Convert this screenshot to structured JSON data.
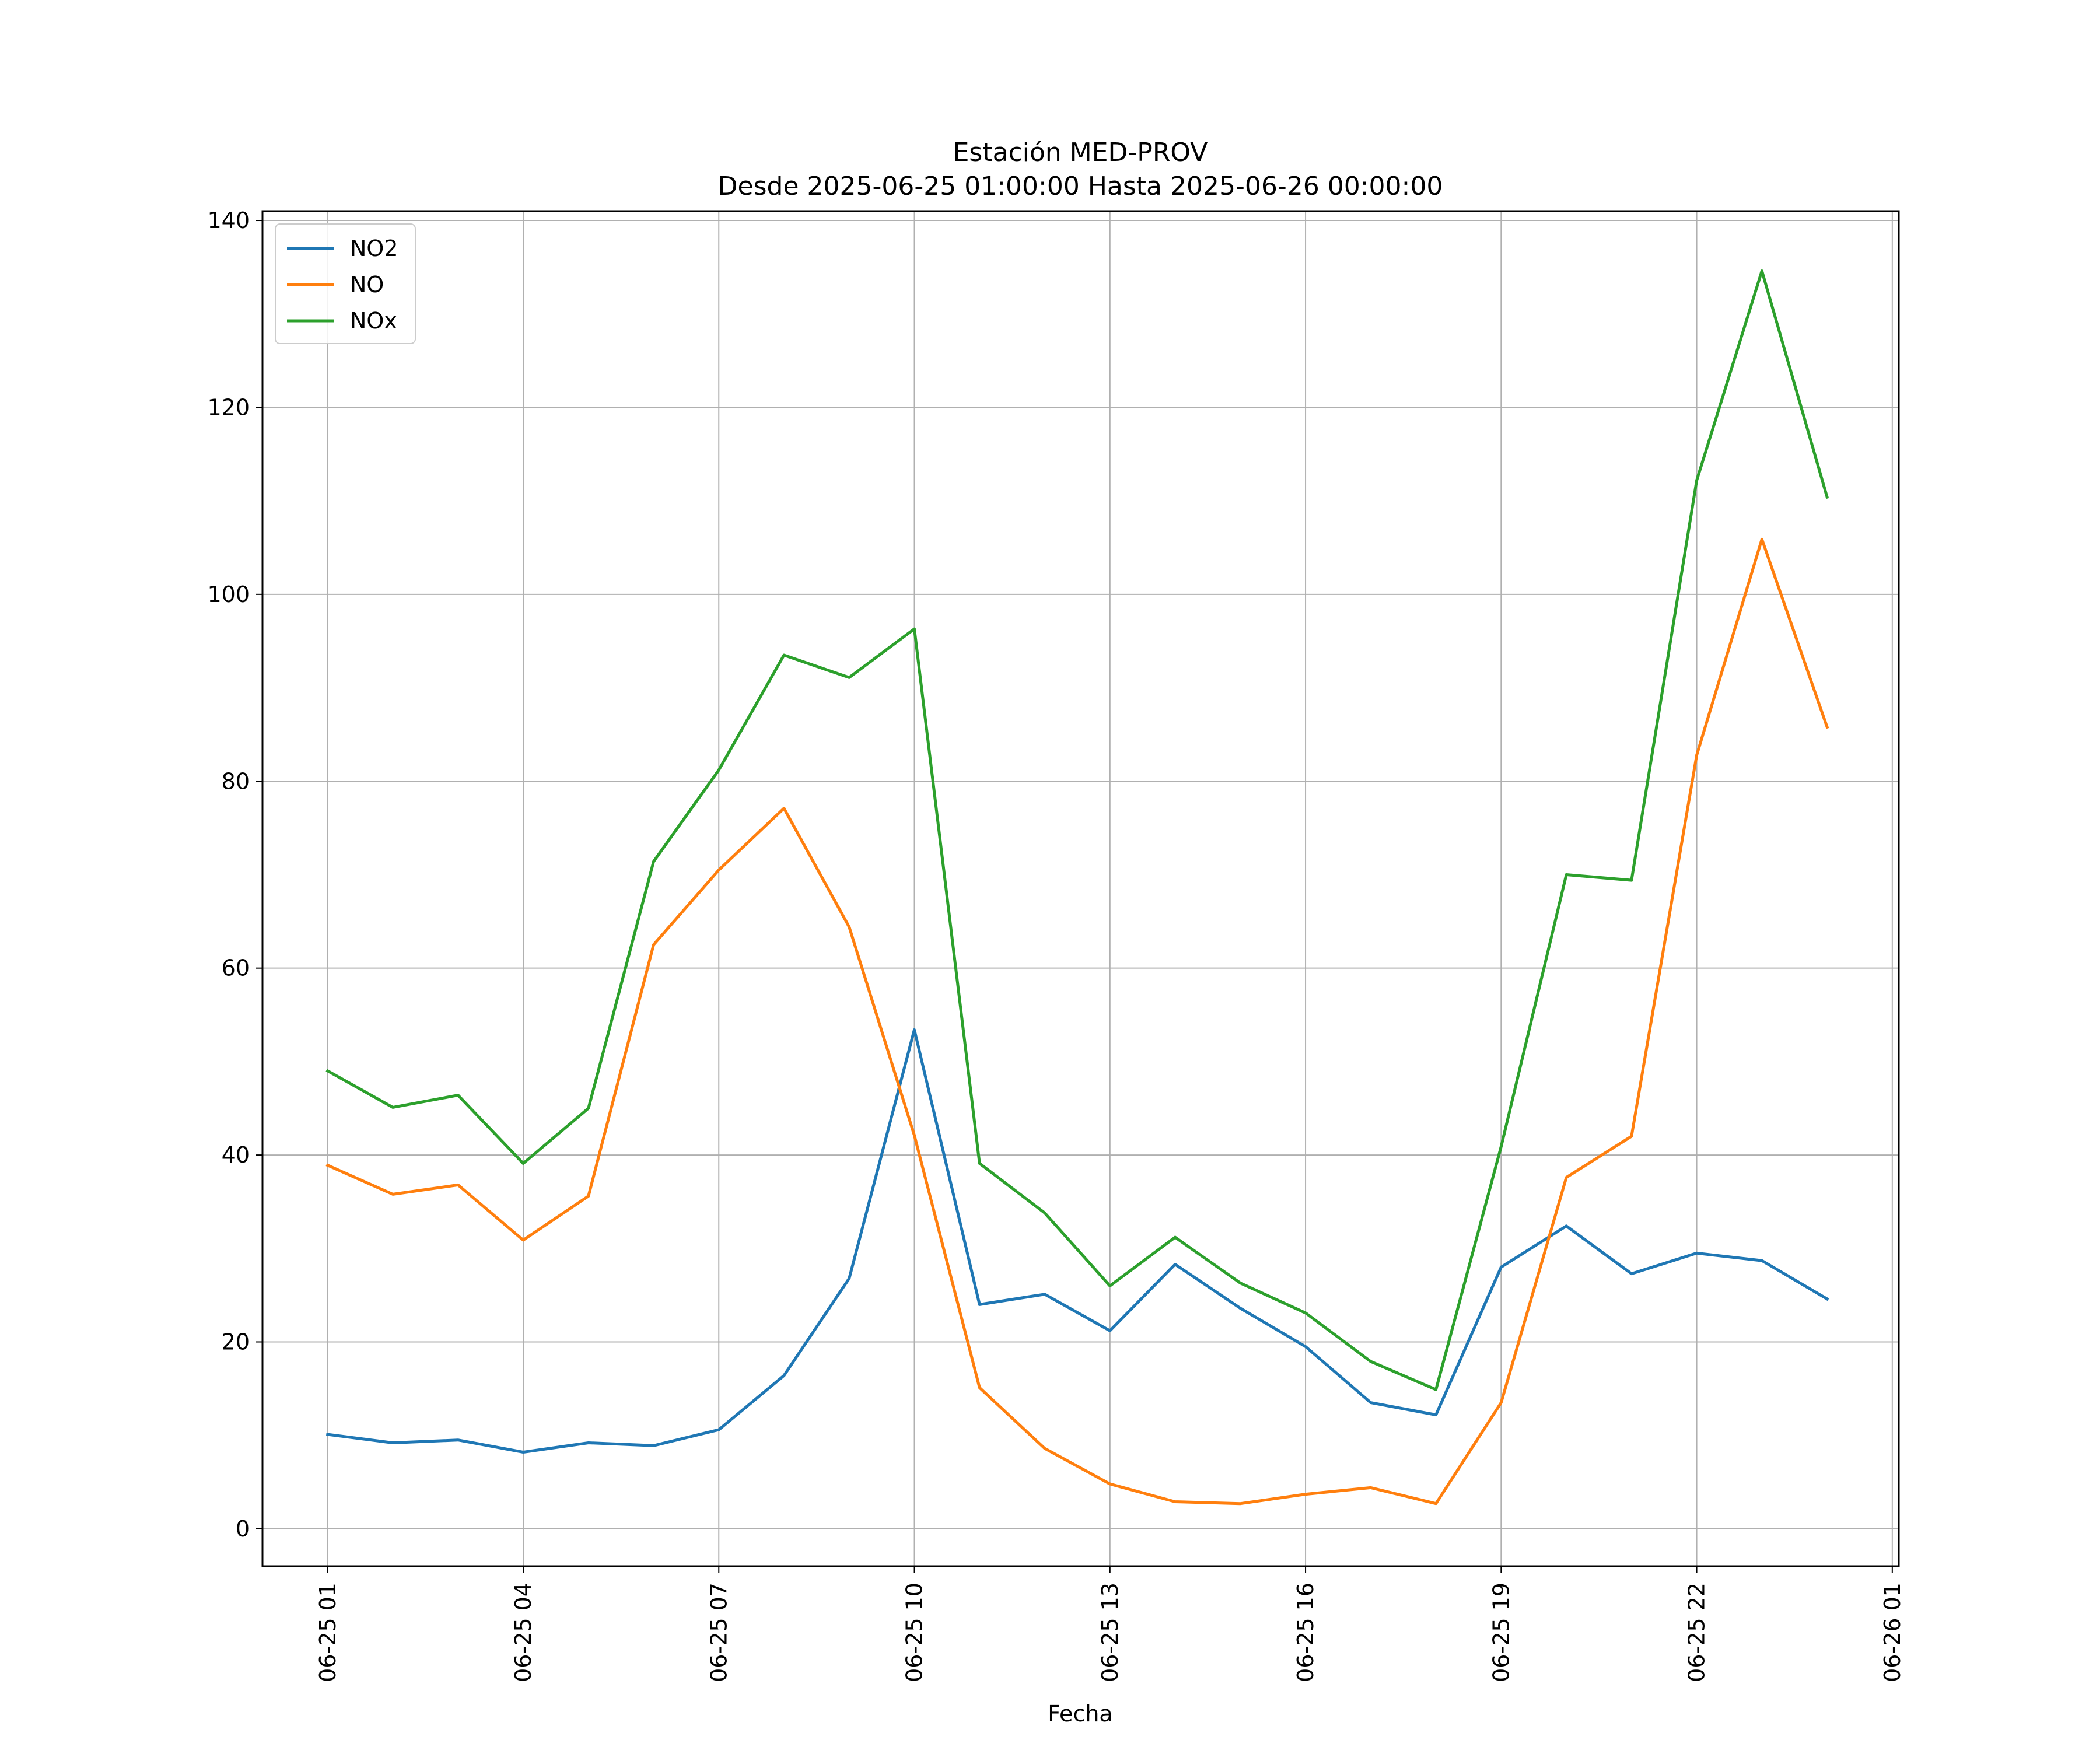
{
  "chart_data": {
    "type": "line",
    "title": "Estación MED-PROV",
    "subtitle": "Desde 2025-06-25 01:00:00 Hasta 2025-06-26 00:00:00",
    "xlabel": "Fecha",
    "ylabel": "",
    "x": [
      "2025-06-25 01:00",
      "2025-06-25 02:00",
      "2025-06-25 03:00",
      "2025-06-25 04:00",
      "2025-06-25 05:00",
      "2025-06-25 06:00",
      "2025-06-25 07:00",
      "2025-06-25 08:00",
      "2025-06-25 09:00",
      "2025-06-25 10:00",
      "2025-06-25 11:00",
      "2025-06-25 12:00",
      "2025-06-25 13:00",
      "2025-06-25 14:00",
      "2025-06-25 15:00",
      "2025-06-25 16:00",
      "2025-06-25 17:00",
      "2025-06-25 18:00",
      "2025-06-25 19:00",
      "2025-06-25 20:00",
      "2025-06-25 21:00",
      "2025-06-25 22:00",
      "2025-06-25 23:00",
      "2025-06-26 00:00"
    ],
    "xlim": [
      "2025-06-25 00:00",
      "2025-06-26 01:06"
    ],
    "ylim": [
      -4,
      141
    ],
    "xticks": [
      "2025-06-25 01:00",
      "2025-06-25 04:00",
      "2025-06-25 07:00",
      "2025-06-25 10:00",
      "2025-06-25 13:00",
      "2025-06-25 16:00",
      "2025-06-25 19:00",
      "2025-06-25 22:00",
      "2025-06-26 01:00"
    ],
    "xtick_labels": [
      "06-25 01",
      "06-25 04",
      "06-25 07",
      "06-25 10",
      "06-25 13",
      "06-25 16",
      "06-25 19",
      "06-25 22",
      "06-26 01"
    ],
    "yticks": [
      0,
      20,
      40,
      60,
      80,
      100,
      120,
      140
    ],
    "ytick_labels": [
      "0",
      "20",
      "40",
      "60",
      "80",
      "100",
      "120",
      "140"
    ],
    "grid": true,
    "legend_position": "top-left",
    "series": [
      {
        "name": "NO2",
        "color": "#1f77b4",
        "values": [
          10.1,
          9.2,
          9.5,
          8.2,
          9.2,
          8.9,
          10.6,
          16.4,
          26.8,
          53.4,
          24.0,
          25.1,
          21.2,
          28.3,
          23.6,
          19.5,
          13.5,
          12.2,
          28.0,
          32.4,
          27.3,
          29.5,
          28.7,
          24.6
        ]
      },
      {
        "name": "NO",
        "color": "#ff7f0e",
        "values": [
          38.9,
          35.8,
          36.8,
          30.9,
          35.6,
          62.5,
          70.5,
          77.1,
          64.4,
          42.1,
          15.1,
          8.6,
          4.8,
          2.9,
          2.7,
          3.7,
          4.4,
          2.7,
          13.5,
          37.6,
          42.0,
          82.8,
          105.9,
          85.8
        ]
      },
      {
        "name": "NOx",
        "color": "#2ca02c",
        "values": [
          49.0,
          45.1,
          46.4,
          39.1,
          45.0,
          71.4,
          81.2,
          93.5,
          91.1,
          96.3,
          39.1,
          33.8,
          26.0,
          31.2,
          26.3,
          23.1,
          17.9,
          14.9,
          40.9,
          70.0,
          69.4,
          112.2,
          134.6,
          110.4
        ]
      }
    ]
  }
}
